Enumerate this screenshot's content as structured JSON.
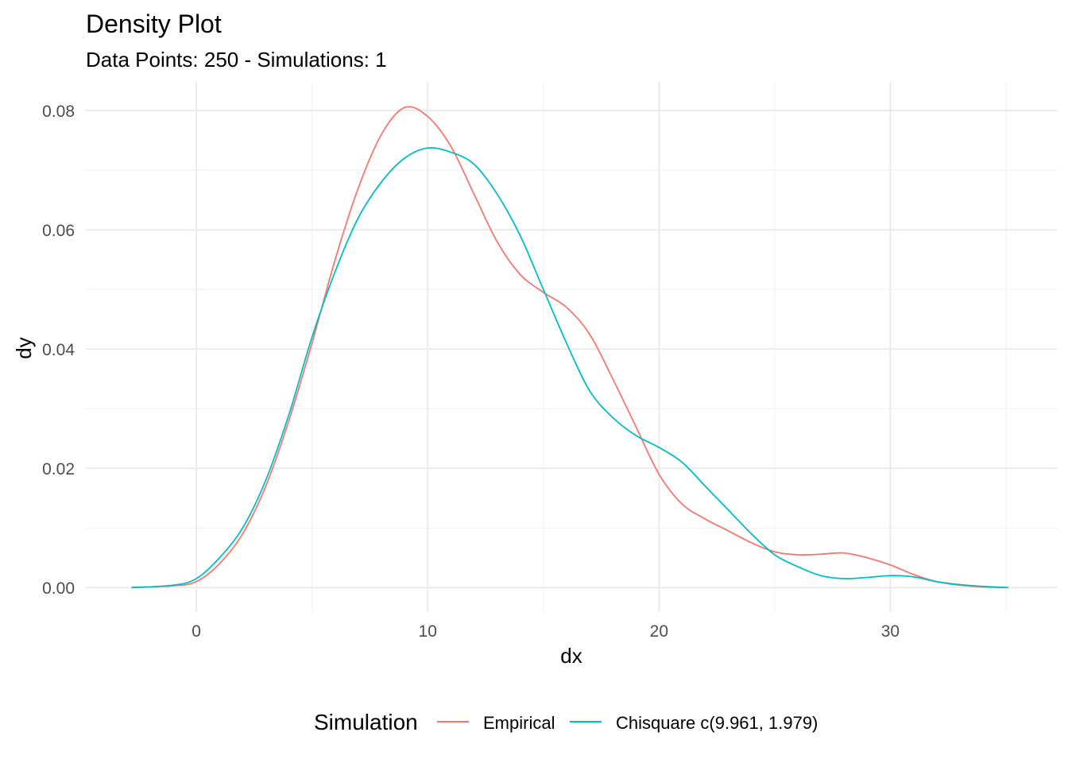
{
  "chart_data": {
    "type": "line",
    "title": "Density Plot",
    "subtitle": "Data Points: 250 - Simulations: 1",
    "xlabel": "dx",
    "ylabel": "dy",
    "xlim": [
      -4.78,
      37.2
    ],
    "ylim": [
      -0.0041,
      0.0848
    ],
    "x_ticks": [
      0,
      10,
      20,
      30
    ],
    "x_tick_labels": [
      "0",
      "10",
      "20",
      "30"
    ],
    "y_ticks": [
      0,
      0.02,
      0.04,
      0.06,
      0.08
    ],
    "y_tick_labels": [
      "0.00",
      "0.02",
      "0.04",
      "0.06",
      "0.08"
    ],
    "x_minor": [
      5,
      15,
      25,
      35
    ],
    "y_minor": [
      0.01,
      0.03,
      0.05,
      0.07
    ],
    "grid": true,
    "legend": {
      "title": "Simulation",
      "placement": "bottom"
    },
    "series": [
      {
        "name": "Empirical",
        "color": "#F8766D",
        "x": [
          -2.8,
          -1,
          0,
          1,
          2,
          3,
          4,
          5,
          6,
          7,
          8,
          9,
          10,
          11,
          12,
          13,
          14,
          15,
          16,
          17,
          18,
          19,
          20,
          21,
          22,
          23,
          24,
          25,
          26,
          27,
          28,
          29,
          30,
          31,
          32,
          33,
          34,
          35.1
        ],
        "y": [
          0,
          0.0003,
          0.001,
          0.004,
          0.009,
          0.017,
          0.028,
          0.041,
          0.055,
          0.067,
          0.076,
          0.0805,
          0.079,
          0.074,
          0.066,
          0.058,
          0.0525,
          0.0495,
          0.047,
          0.0425,
          0.035,
          0.027,
          0.019,
          0.014,
          0.0115,
          0.0095,
          0.0075,
          0.006,
          0.0055,
          0.0056,
          0.0058,
          0.005,
          0.0038,
          0.0022,
          0.001,
          0.0004,
          0.0001,
          0
        ]
      },
      {
        "name": "Chisquare c(9.961, 1.979)",
        "color": "#00BFC4",
        "x": [
          -2.8,
          -1,
          0,
          1,
          2,
          3,
          4,
          5,
          6,
          7,
          8,
          9,
          10,
          11,
          12,
          13,
          14,
          15,
          16,
          17,
          18,
          19,
          20,
          21,
          22,
          23,
          24,
          25,
          26,
          27,
          28,
          29,
          30,
          31,
          32,
          33,
          34,
          35.1
        ],
        "y": [
          0,
          0.0004,
          0.0015,
          0.005,
          0.01,
          0.018,
          0.029,
          0.042,
          0.053,
          0.062,
          0.068,
          0.072,
          0.0737,
          0.073,
          0.071,
          0.066,
          0.059,
          0.05,
          0.041,
          0.033,
          0.0285,
          0.0255,
          0.0235,
          0.021,
          0.017,
          0.013,
          0.009,
          0.0055,
          0.0035,
          0.002,
          0.0015,
          0.0017,
          0.002,
          0.0018,
          0.001,
          0.0005,
          0.0002,
          0
        ]
      }
    ]
  }
}
